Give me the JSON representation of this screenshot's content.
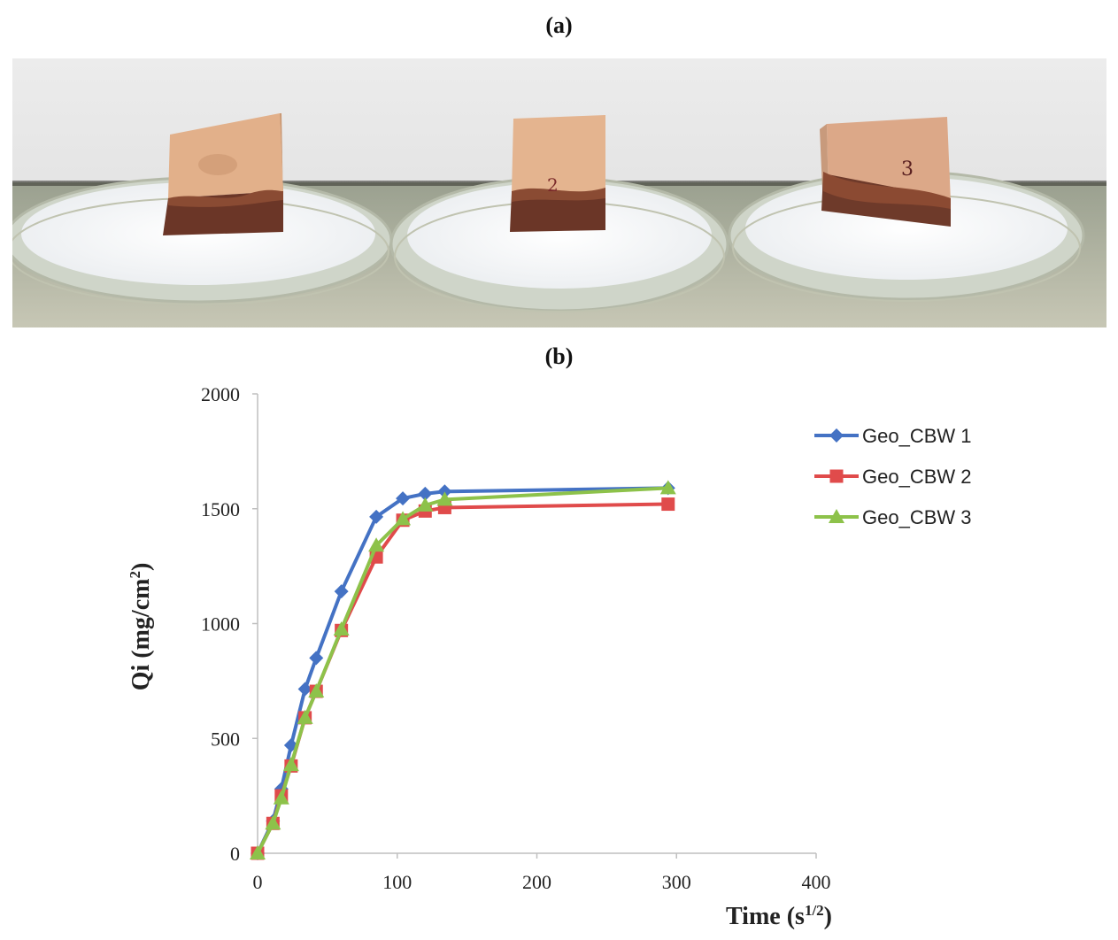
{
  "panels": {
    "a_label": "(a)",
    "b_label": "(b)"
  },
  "photo": {
    "sample_marks": [
      "",
      "2",
      "3"
    ]
  },
  "colors": {
    "series1": "#4472C4",
    "series2": "#E04B4B",
    "series3": "#8DC24A",
    "axis": "#BFBFBF"
  },
  "chart_data": {
    "type": "line",
    "title": "",
    "xlabel": "Time (s",
    "xlabel_sup": "1/2",
    "xlabel_close": ")",
    "ylabel": "Qi (mg/cm",
    "ylabel_sup": "2",
    "ylabel_close": ")",
    "xlim": [
      0,
      400
    ],
    "ylim": [
      0,
      2000
    ],
    "xticks": [
      0,
      100,
      200,
      300,
      400
    ],
    "yticks": [
      0,
      500,
      1000,
      1500,
      2000
    ],
    "legend_position": "right",
    "series": [
      {
        "name": "Geo_CBW 1",
        "marker": "diamond",
        "x": [
          0,
          11,
          17,
          24,
          34,
          42,
          60,
          85,
          104,
          120,
          134,
          294
        ],
        "y": [
          0,
          140,
          280,
          470,
          715,
          850,
          1140,
          1465,
          1545,
          1565,
          1575,
          1590
        ]
      },
      {
        "name": "Geo_CBW 2",
        "marker": "square",
        "x": [
          0,
          11,
          17,
          24,
          34,
          42,
          60,
          85,
          104,
          120,
          134,
          294
        ],
        "y": [
          0,
          130,
          250,
          380,
          590,
          705,
          970,
          1290,
          1450,
          1490,
          1505,
          1520
        ]
      },
      {
        "name": "Geo_CBW 3",
        "marker": "triangle",
        "x": [
          0,
          11,
          17,
          24,
          34,
          42,
          60,
          85,
          104,
          120,
          134,
          294
        ],
        "y": [
          0,
          130,
          240,
          385,
          590,
          705,
          975,
          1340,
          1455,
          1515,
          1540,
          1590
        ]
      }
    ]
  }
}
